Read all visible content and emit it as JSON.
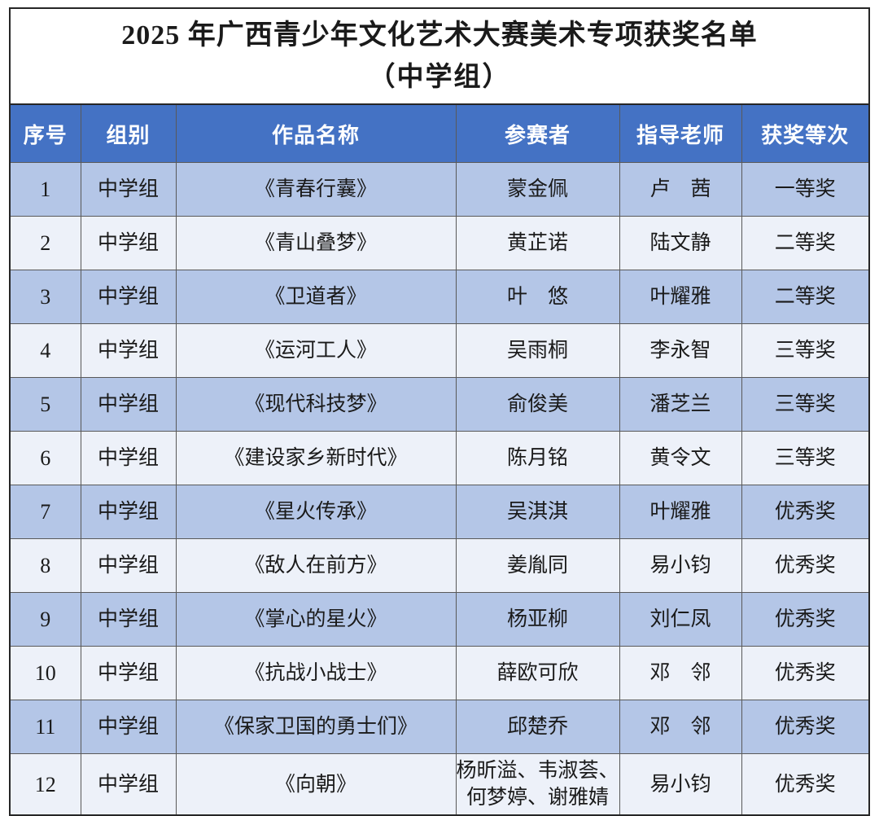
{
  "title": {
    "line1": "2025 年广西青少年文化艺术大赛美术专项获奖名单",
    "line2": "（中学组）"
  },
  "table": {
    "headers": [
      "序号",
      "组别",
      "作品名称",
      "参赛者",
      "指导老师",
      "获奖等次"
    ],
    "rows": [
      [
        "1",
        "中学组",
        "《青春行囊》",
        "蒙金佩",
        "卢　茜",
        "一等奖"
      ],
      [
        "2",
        "中学组",
        "《青山叠梦》",
        "黄芷诺",
        "陆文静",
        "二等奖"
      ],
      [
        "3",
        "中学组",
        "《卫道者》",
        "叶　悠",
        "叶耀雅",
        "二等奖"
      ],
      [
        "4",
        "中学组",
        "《运河工人》",
        "吴雨桐",
        "李永智",
        "三等奖"
      ],
      [
        "5",
        "中学组",
        "《现代科技梦》",
        "俞俊美",
        "潘芝兰",
        "三等奖"
      ],
      [
        "6",
        "中学组",
        "《建设家乡新时代》",
        "陈月铭",
        "黄令文",
        "三等奖"
      ],
      [
        "7",
        "中学组",
        "《星火传承》",
        "吴淇淇",
        "叶耀雅",
        "优秀奖"
      ],
      [
        "8",
        "中学组",
        "《敌人在前方》",
        "姜胤同",
        "易小钧",
        "优秀奖"
      ],
      [
        "9",
        "中学组",
        "《掌心的星火》",
        "杨亚柳",
        "刘仁凤",
        "优秀奖"
      ],
      [
        "10",
        "中学组",
        "《抗战小战士》",
        "薛欧可欣",
        "邓　邻",
        "优秀奖"
      ],
      [
        "11",
        "中学组",
        "《保家卫国的勇士们》",
        "邱楚乔",
        "邓　邻",
        "优秀奖"
      ],
      [
        "12",
        "中学组",
        "《向朝》",
        "杨昕溢、韦淑荟、何梦婷、谢雅婧",
        "易小钧",
        "优秀奖"
      ]
    ]
  },
  "colors": {
    "header_bg": "#4472C4",
    "header_text": "#FFFFFF",
    "row_odd_bg": "#B4C6E7",
    "row_even_bg": "#EDF1F9",
    "grid_line": "#595959",
    "text": "#1A1A1A"
  }
}
